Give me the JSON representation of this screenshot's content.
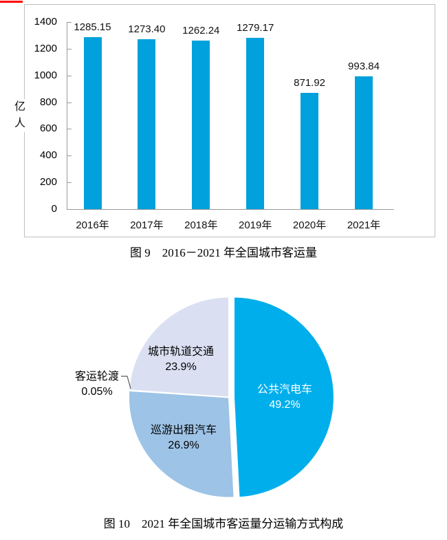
{
  "figure9": {
    "caption": "图 9　2016－2021 年全国城市客运量",
    "y_axis_title": "亿人"
  },
  "figure10": {
    "caption": "图 10　2021 年全国城市客运量分运输方式构成"
  },
  "colors": {
    "bar_blue": "#00A1DC",
    "pie_blue": "#00AEEC",
    "pie_light_blue": "#9DC3E6",
    "pie_lavender": "#DAE0F2",
    "frame_border": "#BFBFBF",
    "axis_gray": "#999999",
    "red_mark": "#FF0000",
    "leader_line": "#595959"
  },
  "chart_data": [
    {
      "type": "bar",
      "title": "图 9　2016－2021 年全国城市客运量",
      "categories": [
        "2016年",
        "2017年",
        "2018年",
        "2019年",
        "2020年",
        "2021年"
      ],
      "values": [
        1285.15,
        1273.4,
        1262.24,
        1279.17,
        871.92,
        993.84
      ],
      "data_labels": [
        "1285.15",
        "1273.40",
        "1262.24",
        "1279.17",
        "871.92",
        "993.84"
      ],
      "xlabel": "",
      "ylabel": "亿人",
      "ylim": [
        0,
        1400
      ],
      "ytick_step": 200,
      "bar_color": "#00A1DC",
      "grid": false,
      "legend": "none"
    },
    {
      "type": "pie",
      "title": "图 10　2021 年全国城市客运量分运输方式构成",
      "start_angle_deg": 0,
      "direction": "clockwise",
      "exploded_slice": "公共汽电车",
      "slices": [
        {
          "label": "公共汽电车",
          "value": 49.2,
          "pct_label": "49.2%",
          "color": "#00AEEC",
          "text_color": "#FFFFFF"
        },
        {
          "label": "巡游出租汽车",
          "value": 26.9,
          "pct_label": "26.9%",
          "color": "#9DC3E6",
          "text_color": "#000000"
        },
        {
          "label": "客运轮渡",
          "value": 0.05,
          "pct_label": "0.05%",
          "color": "#FFE699",
          "text_color": "#000000"
        },
        {
          "label": "城市轨道交通",
          "value": 23.9,
          "pct_label": "23.9%",
          "color": "#DAE0F2",
          "text_color": "#000000"
        }
      ]
    }
  ]
}
